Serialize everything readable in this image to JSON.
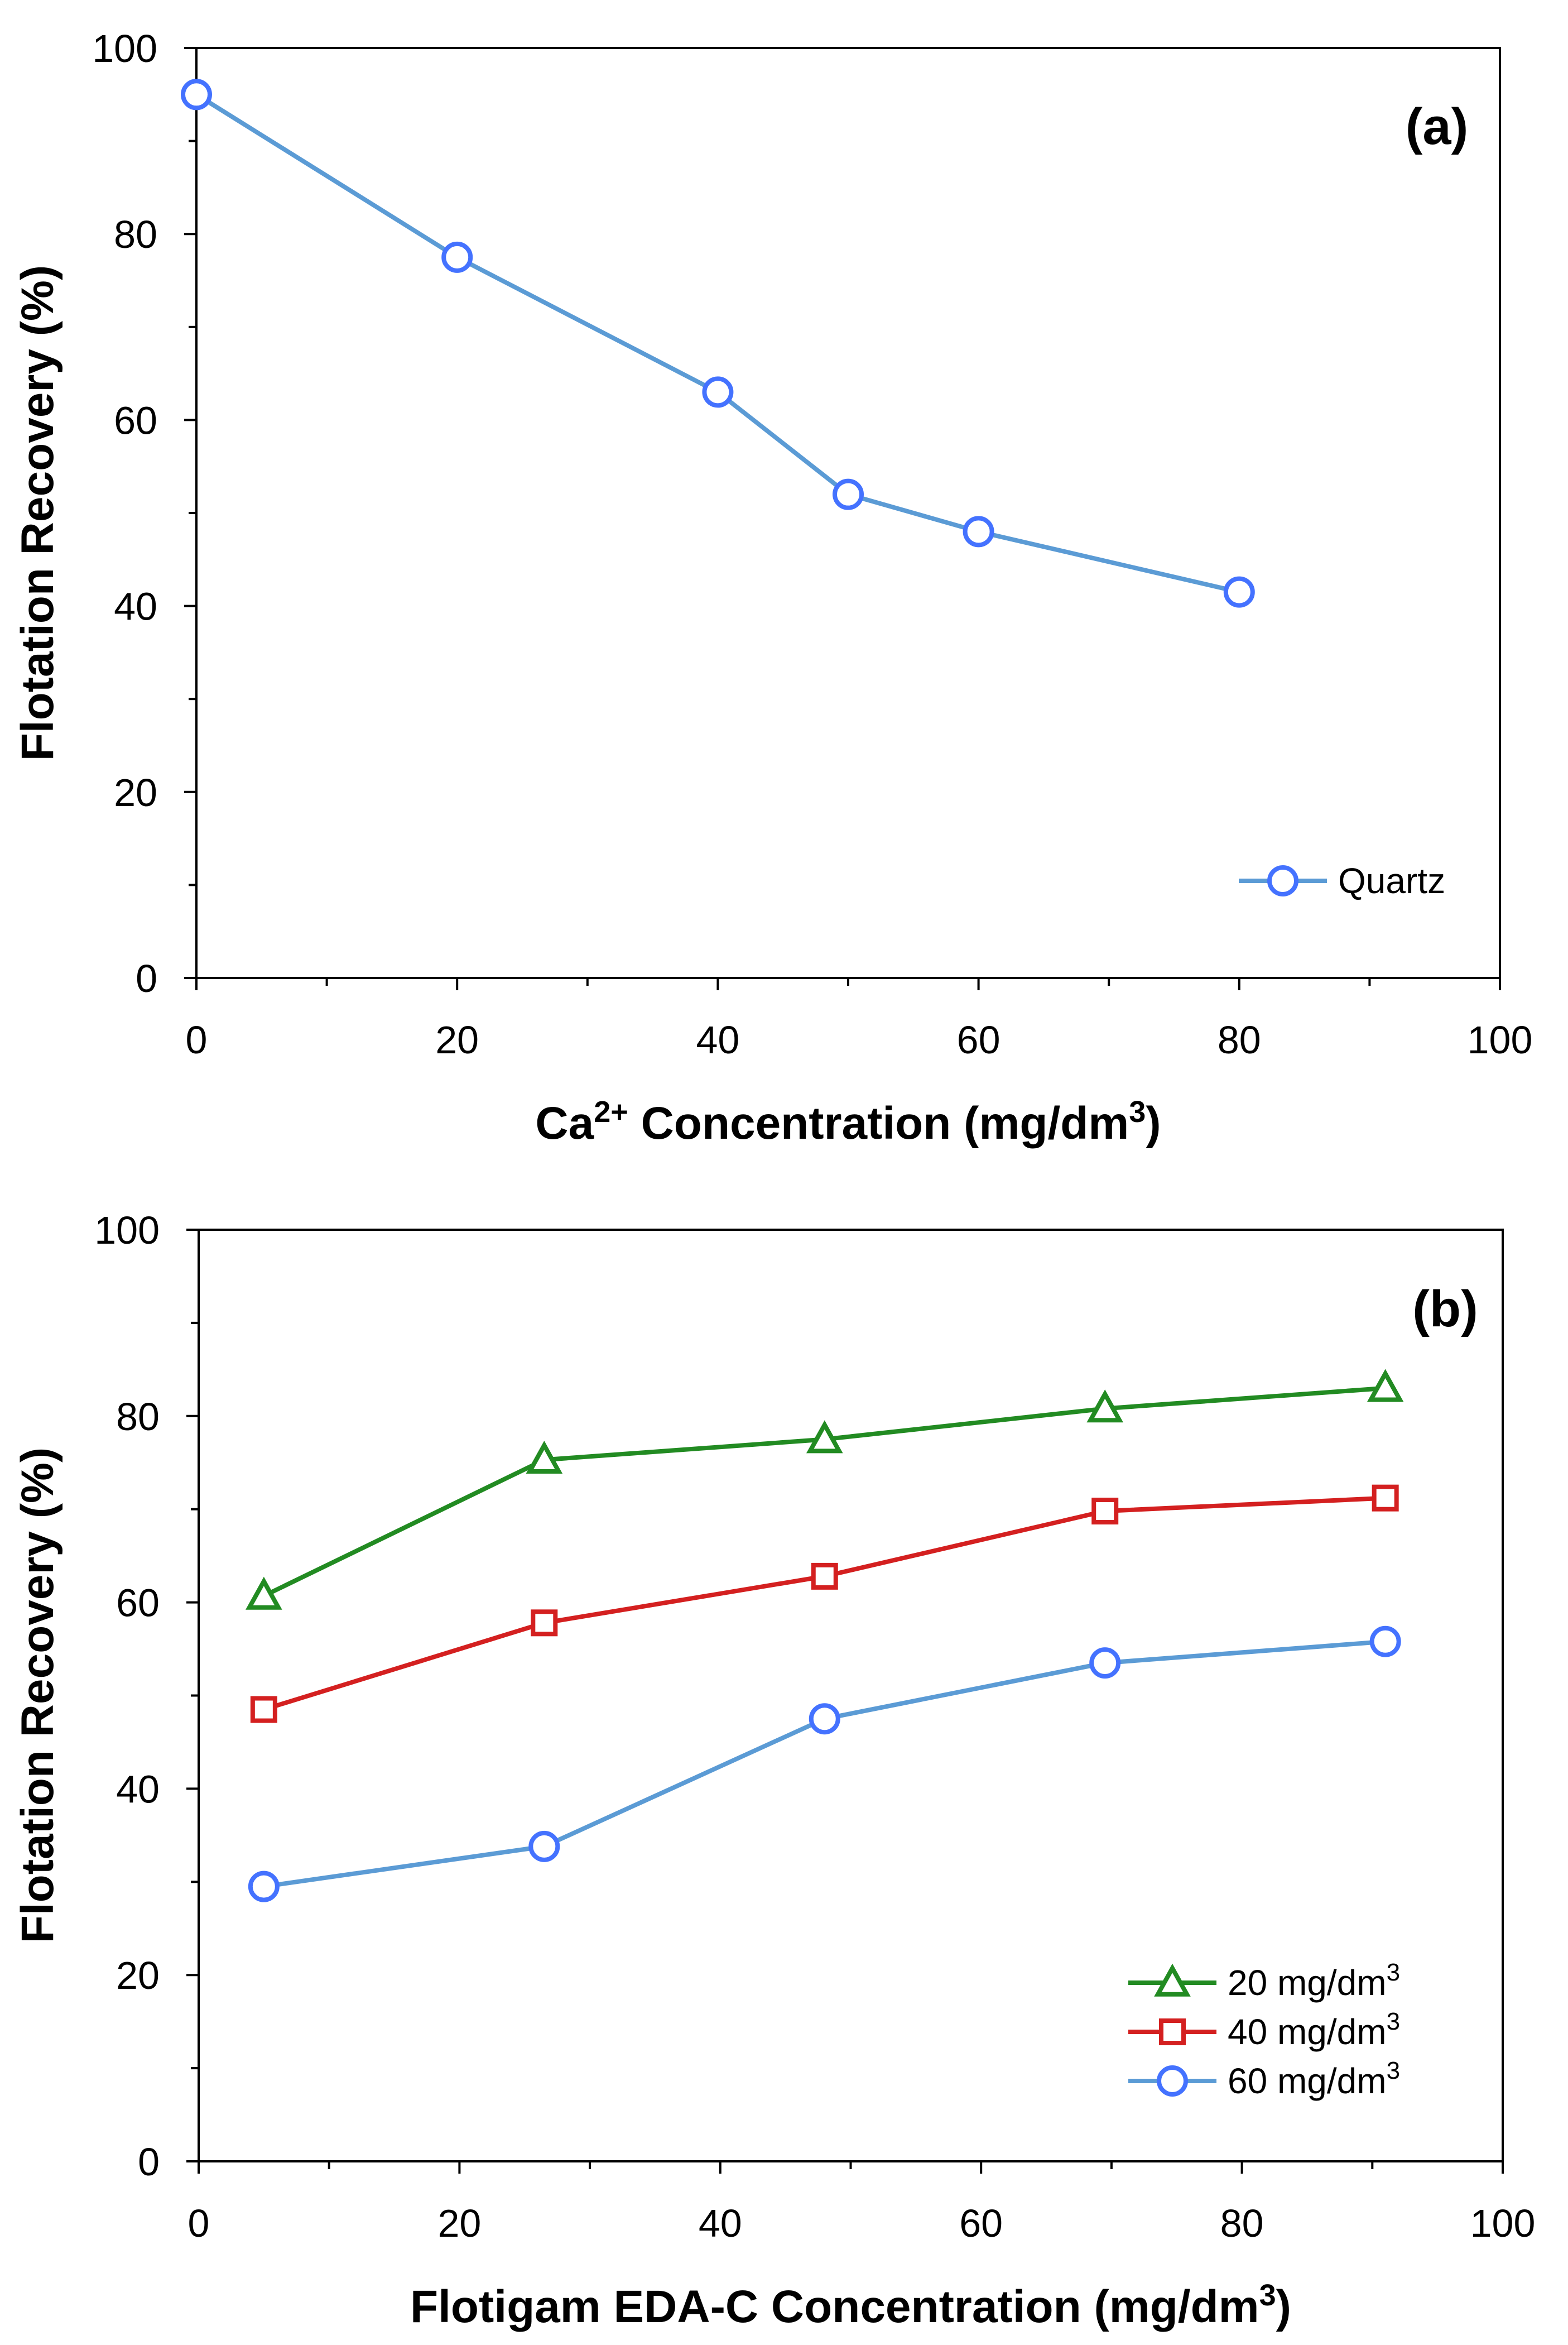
{
  "chart_data": [
    {
      "type": "line",
      "panel_label": "(a)",
      "xlabel": {
        "pre": "Ca",
        "sup1": "2+",
        "mid": " Concentration (mg/dm",
        "sup2": "3",
        "post": ")"
      },
      "ylabel": "Flotation Recovery (%)",
      "xlim": [
        0,
        100
      ],
      "ylim": [
        0,
        100
      ],
      "x_ticks": [
        "0",
        "20",
        "40",
        "60",
        "80",
        "100"
      ],
      "y_ticks": [
        "0",
        "20",
        "40",
        "60",
        "80",
        "100"
      ],
      "x_tick_values": [
        0,
        20,
        40,
        60,
        80,
        100
      ],
      "y_tick_values": [
        0,
        20,
        40,
        60,
        80,
        100
      ],
      "x_minor_step": 10,
      "y_minor_step": 10,
      "legend_position": "bottom-right",
      "series": [
        {
          "name": "Quartz",
          "marker": "circle",
          "color": "#5b9bd5",
          "marker_color": "#4472ff",
          "x": [
            0,
            20,
            40,
            50,
            60,
            80
          ],
          "values": [
            95,
            77.5,
            63,
            52,
            48,
            41.5
          ]
        }
      ]
    },
    {
      "type": "line",
      "panel_label": "(b)",
      "xlabel": {
        "pre": "Flotigam EDA-C Concentration (mg/dm",
        "sup2": "3",
        "post": ")"
      },
      "ylabel": "Flotation Recovery (%)",
      "xlim": [
        0,
        100
      ],
      "ylim": [
        0,
        100
      ],
      "x_ticks": [
        "0",
        "20",
        "40",
        "60",
        "80",
        "100"
      ],
      "y_ticks": [
        "0",
        "20",
        "40",
        "60",
        "80",
        "100"
      ],
      "x_tick_values": [
        0,
        20,
        40,
        60,
        80,
        100
      ],
      "y_tick_values": [
        0,
        20,
        40,
        60,
        80,
        100
      ],
      "x_minor_step": 10,
      "y_minor_step": 10,
      "legend_position": "bottom-right",
      "series": [
        {
          "name": "20 mg/dm",
          "name_sup": "3",
          "marker": "triangle",
          "color": "#228b22",
          "marker_color": "#228b22",
          "x": [
            5,
            26.5,
            48,
            69.5,
            91
          ],
          "values": [
            60.7,
            75.3,
            77.5,
            80.8,
            83
          ]
        },
        {
          "name": "40 mg/dm",
          "name_sup": "3",
          "marker": "square",
          "color": "#d42020",
          "marker_color": "#d42020",
          "x": [
            5,
            26.5,
            48,
            69.5,
            91
          ],
          "values": [
            48.5,
            57.8,
            62.8,
            69.8,
            71.2
          ]
        },
        {
          "name": "60 mg/dm",
          "name_sup": "3",
          "marker": "circle",
          "color": "#5b9bd5",
          "marker_color": "#4472ff",
          "x": [
            5,
            26.5,
            48,
            69.5,
            91
          ],
          "values": [
            29.5,
            33.8,
            47.5,
            53.5,
            55.8
          ]
        }
      ]
    }
  ]
}
